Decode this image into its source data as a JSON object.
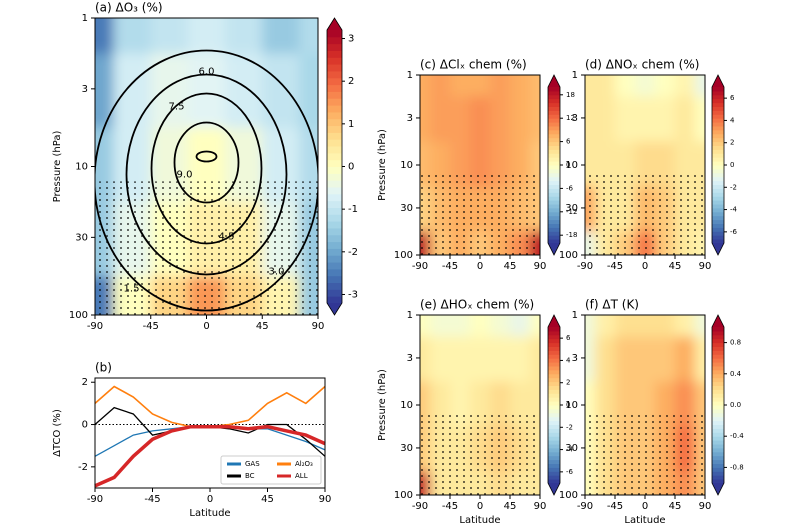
{
  "chart_data": [
    {
      "type": "heatmap",
      "title": "(a) ΔO₃ (%)",
      "ylabel": "Pressure (hPa)",
      "x": [
        -90,
        -60,
        -30,
        0,
        30,
        60,
        90
      ],
      "y": [
        1,
        3,
        10,
        30,
        100
      ],
      "z": [
        [
          -2.5,
          -1.2,
          -1,
          -0.8,
          -1,
          -1.5,
          -1.2
        ],
        [
          -2,
          -0.8,
          -0.5,
          -0.6,
          -0.8,
          -1,
          -1.3
        ],
        [
          -1.5,
          -0.8,
          -0.3,
          0,
          -0.3,
          -0.8,
          -1.2
        ],
        [
          -1.5,
          -0.5,
          0,
          0.3,
          0.3,
          -0.5,
          -1.5
        ],
        [
          -2.5,
          0,
          0.8,
          1.5,
          0.8,
          0.2,
          -1.5
        ]
      ],
      "xlim": [
        -90,
        90
      ],
      "xticks": [
        -90,
        -45,
        0,
        45,
        90
      ],
      "ylim": [
        100,
        1
      ],
      "yticks": [
        1,
        3,
        10,
        30,
        100
      ],
      "log_y": true,
      "clim": [
        -3.2,
        3.2
      ],
      "cbar_ticks": [
        -3,
        -2,
        -1,
        0,
        1,
        2,
        3
      ],
      "annotations": [
        "6.0",
        "7.5",
        "9.0",
        "4.5",
        "3.0",
        "1.5"
      ]
    },
    {
      "type": "line",
      "title": "(b)",
      "xlabel": "Latitude",
      "ylabel": "ΔTCO (%)",
      "x": [
        -90,
        -75,
        -60,
        -45,
        -30,
        -15,
        0,
        15,
        30,
        45,
        60,
        75,
        90
      ],
      "series": [
        {
          "name": "GAS",
          "color": "#1f77b4",
          "values": [
            -1.5,
            -1.0,
            -0.5,
            -0.3,
            -0.2,
            -0.1,
            -0.1,
            -0.1,
            -0.2,
            -0.2,
            -0.5,
            -0.8,
            -1.2
          ]
        },
        {
          "name": "BC",
          "color": "#000000",
          "values": [
            0,
            0.8,
            0.5,
            -0.5,
            -0.3,
            -0.1,
            -0.1,
            -0.2,
            -0.4,
            0,
            0,
            -0.7,
            -1.5
          ]
        },
        {
          "name": "Al₂O₃",
          "color": "#ff7f0e",
          "values": [
            1,
            1.8,
            1.3,
            0.5,
            0.1,
            -0.1,
            -0.1,
            0,
            0.2,
            1,
            1.5,
            1,
            1.8
          ]
        },
        {
          "name": "ALL",
          "color": "#d62728",
          "values": [
            -2.9,
            -2.5,
            -1.5,
            -0.7,
            -0.3,
            -0.1,
            -0.1,
            -0.1,
            -0.2,
            -0.1,
            -0.3,
            -0.5,
            -0.9
          ]
        }
      ],
      "xlim": [
        -90,
        90
      ],
      "xticks": [
        -90,
        -45,
        0,
        45,
        90
      ],
      "ylim": [
        -3,
        2.2
      ],
      "yticks": [
        -2,
        0,
        2
      ],
      "legend": "lower right"
    },
    {
      "type": "heatmap",
      "title": "(c) ΔClₓ chem (%)",
      "ylabel": "Pressure (hPa)",
      "x": [
        -90,
        -60,
        -30,
        0,
        30,
        60,
        90
      ],
      "y": [
        1,
        3,
        10,
        30,
        100
      ],
      "z": [
        [
          8,
          9,
          8,
          8,
          9,
          8,
          7
        ],
        [
          8,
          9,
          9,
          10,
          9,
          8,
          7
        ],
        [
          7,
          8,
          9,
          10,
          9,
          8,
          6
        ],
        [
          5,
          7,
          8,
          8,
          8,
          7,
          6
        ],
        [
          18,
          6,
          8,
          6,
          8,
          10,
          18
        ]
      ],
      "xlim": [
        -90,
        90
      ],
      "xticks": [
        -90,
        -45,
        0,
        45,
        90
      ],
      "ylim": [
        100,
        1
      ],
      "yticks": [
        1,
        3,
        10,
        30,
        100
      ],
      "log_y": true,
      "clim": [
        -20,
        20
      ],
      "cbar_ticks": [
        -18,
        -12,
        -6,
        0,
        6,
        12,
        18
      ]
    },
    {
      "type": "heatmap",
      "title": "(d) ΔNOₓ chem (%)",
      "x": [
        -90,
        -60,
        -30,
        0,
        30,
        60,
        90
      ],
      "y": [
        1,
        3,
        10,
        30,
        100
      ],
      "z": [
        [
          1,
          1,
          0,
          -0.5,
          0,
          0.5,
          -1
        ],
        [
          1,
          1,
          0.5,
          0.5,
          0.5,
          1,
          0
        ],
        [
          1,
          1,
          1,
          1.5,
          1.5,
          1,
          1
        ],
        [
          3,
          1,
          1,
          2.5,
          2,
          1,
          1
        ],
        [
          -1,
          1,
          2,
          4,
          2,
          1,
          0.5
        ]
      ],
      "xlim": [
        -90,
        90
      ],
      "xticks": [
        -90,
        -45,
        0,
        45,
        90
      ],
      "ylim": [
        100,
        1
      ],
      "yticks": [
        1,
        3,
        10,
        30,
        100
      ],
      "log_y": true,
      "clim": [
        -7,
        7
      ],
      "cbar_ticks": [
        -6,
        -4,
        -2,
        0,
        2,
        4,
        6
      ]
    },
    {
      "type": "heatmap",
      "title": "(e) ΔHOₓ chem (%)",
      "xlabel": "Latitude",
      "ylabel": "Pressure (hPa)",
      "x": [
        -90,
        -60,
        -30,
        0,
        30,
        60,
        90
      ],
      "y": [
        1,
        3,
        10,
        30,
        100
      ],
      "z": [
        [
          0,
          -0.5,
          -0.5,
          0,
          -0.5,
          -1,
          0
        ],
        [
          1,
          0.5,
          0.5,
          0.5,
          0.5,
          0.5,
          1
        ],
        [
          2,
          1,
          0.5,
          1,
          1.5,
          1,
          1
        ],
        [
          2,
          1,
          1,
          1.5,
          2,
          1.5,
          1
        ],
        [
          6,
          1,
          1,
          1,
          1.5,
          1,
          1
        ]
      ],
      "xlim": [
        -90,
        90
      ],
      "xticks": [
        -90,
        -45,
        0,
        45,
        90
      ],
      "ylim": [
        100,
        1
      ],
      "yticks": [
        1,
        3,
        10,
        30,
        100
      ],
      "log_y": true,
      "clim": [
        -7,
        7
      ],
      "cbar_ticks": [
        -6,
        -4,
        -2,
        0,
        2,
        4,
        6
      ]
    },
    {
      "type": "heatmap",
      "title": "(f) ΔT (K)",
      "xlabel": "Latitude",
      "x": [
        -90,
        -60,
        -30,
        0,
        30,
        60,
        90
      ],
      "y": [
        1,
        3,
        10,
        30,
        100
      ],
      "z": [
        [
          -0.1,
          0.1,
          0.2,
          0.2,
          0.2,
          0.1,
          -0.1
        ],
        [
          -0.1,
          0.2,
          0.3,
          0.3,
          0.3,
          0.4,
          0.1
        ],
        [
          0,
          0.2,
          0.3,
          0.3,
          0.4,
          0.5,
          0.3
        ],
        [
          0,
          0.2,
          0.3,
          0.3,
          0.4,
          0.6,
          0.3
        ],
        [
          0,
          0.2,
          0.3,
          0.3,
          0.4,
          0.5,
          0.3
        ]
      ],
      "xlim": [
        -90,
        90
      ],
      "xticks": [
        -90,
        -45,
        0,
        45,
        90
      ],
      "ylim": [
        100,
        1
      ],
      "yticks": [
        1,
        3,
        10,
        30,
        100
      ],
      "log_y": true,
      "clim": [
        -1,
        1
      ],
      "cbar_ticks": [
        -0.8,
        -0.4,
        {
          "value": 0,
          "label": "0.0"
        },
        0.4,
        0.8
      ]
    }
  ]
}
